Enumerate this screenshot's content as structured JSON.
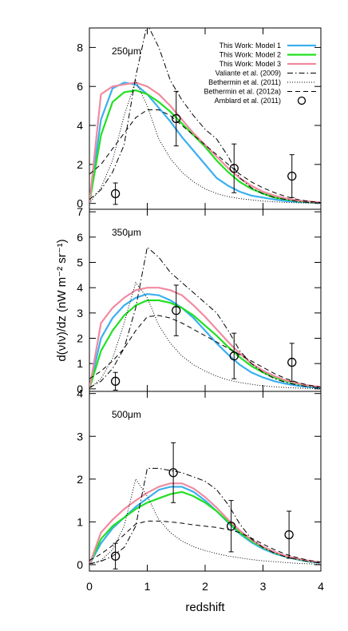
{
  "chart_data": [
    {
      "type": "line",
      "annotation": "250μm",
      "legend": "upper right",
      "x": [
        0,
        0.2,
        0.4,
        0.6,
        0.8,
        1.0,
        1.2,
        1.4,
        1.6,
        1.8,
        2.0,
        2.2,
        2.4,
        2.6,
        2.8,
        3.0,
        3.2,
        3.4,
        3.6,
        3.8,
        4.0
      ],
      "ylim": [
        -0.3,
        9
      ],
      "yticks": [
        0,
        2,
        4,
        6,
        8
      ],
      "xlim": [
        0,
        4
      ],
      "xticks": [
        0,
        1,
        2,
        3,
        4
      ],
      "series": [
        {
          "name": "This Work: Model 1",
          "color": "#3ab0f0",
          "style": "solid",
          "values": [
            0,
            4.3,
            5.9,
            6.2,
            6.1,
            5.6,
            4.9,
            4.2,
            3.4,
            2.7,
            2.0,
            1.3,
            0.9,
            0.6,
            0.4,
            0.3,
            0.2,
            0.12,
            0.08,
            0.05,
            0.03
          ]
        },
        {
          "name": "This Work: Model 2",
          "color": "#22e022",
          "style": "solid",
          "values": [
            0,
            3.5,
            5.2,
            5.7,
            5.8,
            5.6,
            5.2,
            4.7,
            4.1,
            3.5,
            2.9,
            2.2,
            1.6,
            1.1,
            0.75,
            0.5,
            0.3,
            0.2,
            0.12,
            0.07,
            0.04
          ]
        },
        {
          "name": "This Work: Model 3",
          "color": "#f08aa0",
          "style": "solid",
          "values": [
            0,
            5.6,
            6.0,
            6.1,
            6.2,
            6.0,
            5.6,
            5.0,
            4.3,
            3.6,
            3.0,
            2.4,
            1.8,
            1.3,
            0.9,
            0.6,
            0.4,
            0.25,
            0.15,
            0.1,
            0.05
          ]
        },
        {
          "name": "Valiante et al. (2009)",
          "color": "#000000",
          "style": "dashdot",
          "values": [
            0.2,
            0.7,
            1.6,
            3.0,
            6.5,
            9.2,
            8.0,
            6.3,
            5.3,
            4.5,
            3.8,
            3.3,
            2.4,
            1.3,
            0.8,
            0.5,
            0.3,
            0.2,
            0.1,
            0.05,
            0.02
          ]
        },
        {
          "name": "Bethermin et al. (2011)",
          "color": "#000000",
          "style": "dotted",
          "values": [
            0,
            0.8,
            2.2,
            4.5,
            6.3,
            5.0,
            3.3,
            2.3,
            1.6,
            1.1,
            0.75,
            0.5,
            0.35,
            0.25,
            0.18,
            0.12,
            0.08,
            0.05,
            0.03,
            0.02,
            0.01
          ]
        },
        {
          "name": "Bethermin et al. (2012a)",
          "color": "#000000",
          "style": "dashed",
          "values": [
            1.5,
            2.0,
            2.8,
            3.6,
            4.4,
            4.8,
            4.8,
            4.5,
            4.0,
            3.5,
            3.0,
            2.5,
            2.0,
            1.5,
            1.1,
            0.8,
            0.55,
            0.35,
            0.2,
            0.1,
            0.05
          ]
        },
        {
          "name": "Amblard et al. (2011)",
          "color": "#000000",
          "style": "points",
          "x": [
            0.45,
            1.5,
            2.5,
            3.5
          ],
          "values": [
            0.5,
            4.35,
            1.8,
            1.4
          ],
          "errors": [
            0.55,
            1.4,
            1.25,
            1.1
          ]
        }
      ]
    },
    {
      "type": "line",
      "annotation": "350μm",
      "ylabel": "d(νIν)/dz (nW m⁻² sr⁻¹)",
      "x": [
        0,
        0.2,
        0.4,
        0.6,
        0.8,
        1.0,
        1.2,
        1.4,
        1.6,
        1.8,
        2.0,
        2.2,
        2.4,
        2.6,
        2.8,
        3.0,
        3.2,
        3.4,
        3.6,
        3.8,
        4.0
      ],
      "ylim": [
        -0.1,
        7.1
      ],
      "yticks": [
        0,
        1,
        2,
        3,
        4,
        5,
        6,
        7
      ],
      "xlim": [
        0,
        4
      ],
      "xticks": [
        0,
        1,
        2,
        3,
        4
      ],
      "series": [
        {
          "color": "#3ab0f0",
          "style": "solid",
          "values": [
            0,
            2.0,
            2.8,
            3.3,
            3.6,
            3.75,
            3.7,
            3.5,
            3.2,
            2.8,
            2.3,
            1.8,
            1.35,
            0.95,
            0.65,
            0.45,
            0.3,
            0.2,
            0.12,
            0.07,
            0.04
          ]
        },
        {
          "color": "#22e022",
          "style": "solid",
          "values": [
            0,
            1.5,
            2.3,
            2.9,
            3.3,
            3.5,
            3.5,
            3.4,
            3.2,
            2.9,
            2.5,
            2.1,
            1.65,
            1.25,
            0.9,
            0.65,
            0.45,
            0.3,
            0.2,
            0.12,
            0.07
          ]
        },
        {
          "color": "#f08aa0",
          "style": "solid",
          "values": [
            0,
            2.6,
            3.2,
            3.6,
            3.9,
            4.0,
            4.0,
            3.9,
            3.7,
            3.3,
            2.85,
            2.35,
            1.85,
            1.4,
            1.0,
            0.72,
            0.5,
            0.33,
            0.22,
            0.13,
            0.08
          ]
        },
        {
          "color": "#000000",
          "style": "dashdot",
          "values": [
            0.05,
            0.3,
            0.8,
            1.6,
            3.2,
            5.6,
            5.2,
            4.6,
            4.2,
            3.8,
            3.4,
            3.0,
            2.3,
            1.5,
            1.0,
            0.65,
            0.4,
            0.25,
            0.15,
            0.08,
            0.04
          ]
        },
        {
          "color": "#000000",
          "style": "dotted",
          "values": [
            0,
            0.4,
            1.2,
            2.6,
            4.2,
            3.6,
            2.5,
            1.8,
            1.3,
            0.95,
            0.7,
            0.5,
            0.35,
            0.25,
            0.18,
            0.12,
            0.08,
            0.05,
            0.03,
            0.02,
            0.01
          ]
        },
        {
          "color": "#000000",
          "style": "dashed",
          "values": [
            0.4,
            0.7,
            1.1,
            1.6,
            2.3,
            2.85,
            2.9,
            2.8,
            2.6,
            2.35,
            2.1,
            1.85,
            1.6,
            1.35,
            1.1,
            0.85,
            0.6,
            0.4,
            0.25,
            0.14,
            0.07
          ]
        },
        {
          "color": "#000000",
          "style": "points",
          "x": [
            0.45,
            1.5,
            2.5,
            3.5
          ],
          "values": [
            0.3,
            3.1,
            1.3,
            1.05
          ],
          "errors": [
            0.35,
            1.0,
            0.9,
            0.75
          ]
        }
      ]
    },
    {
      "type": "line",
      "annotation": "500μm",
      "xlabel": "redshift",
      "x": [
        0,
        0.2,
        0.4,
        0.6,
        0.8,
        1.0,
        1.2,
        1.4,
        1.6,
        1.8,
        2.0,
        2.2,
        2.4,
        2.6,
        2.8,
        3.0,
        3.2,
        3.4,
        3.6,
        3.8,
        4.0
      ],
      "ylim": [
        -0.15,
        4.05
      ],
      "yticks": [
        0,
        1,
        2,
        3,
        4
      ],
      "xlim": [
        0,
        4
      ],
      "xticks": [
        0,
        1,
        2,
        3,
        4
      ],
      "series": [
        {
          "color": "#3ab0f0",
          "style": "solid",
          "values": [
            0,
            0.5,
            0.85,
            1.1,
            1.35,
            1.55,
            1.75,
            1.82,
            1.82,
            1.7,
            1.5,
            1.25,
            0.98,
            0.72,
            0.52,
            0.37,
            0.26,
            0.18,
            0.12,
            0.07,
            0.04
          ]
        },
        {
          "color": "#22e022",
          "style": "solid",
          "values": [
            0,
            0.6,
            0.9,
            1.1,
            1.3,
            1.45,
            1.55,
            1.65,
            1.7,
            1.6,
            1.45,
            1.25,
            1.0,
            0.75,
            0.55,
            0.4,
            0.28,
            0.19,
            0.13,
            0.08,
            0.05
          ]
        },
        {
          "color": "#f08aa0",
          "style": "solid",
          "values": [
            0,
            0.75,
            1.05,
            1.3,
            1.5,
            1.68,
            1.82,
            1.9,
            1.9,
            1.78,
            1.58,
            1.33,
            1.05,
            0.8,
            0.58,
            0.42,
            0.3,
            0.2,
            0.14,
            0.09,
            0.05
          ]
        },
        {
          "color": "#000000",
          "style": "dashdot",
          "values": [
            0.02,
            0.08,
            0.2,
            0.4,
            0.9,
            2.25,
            2.25,
            2.2,
            2.15,
            2.05,
            1.95,
            1.75,
            1.4,
            0.95,
            0.6,
            0.4,
            0.27,
            0.18,
            0.12,
            0.07,
            0.04
          ]
        },
        {
          "color": "#000000",
          "style": "dotted",
          "values": [
            0,
            0.1,
            0.35,
            0.9,
            2.0,
            1.6,
            1.05,
            0.75,
            0.55,
            0.42,
            0.33,
            0.26,
            0.2,
            0.16,
            0.12,
            0.09,
            0.07,
            0.05,
            0.03,
            0.02,
            0.01
          ]
        },
        {
          "color": "#000000",
          "style": "dashed",
          "values": [
            0.1,
            0.25,
            0.45,
            0.7,
            0.95,
            1.02,
            1.02,
            1.0,
            0.97,
            0.93,
            0.9,
            0.87,
            0.82,
            0.75,
            0.62,
            0.48,
            0.35,
            0.24,
            0.16,
            0.1,
            0.06
          ]
        },
        {
          "color": "#000000",
          "style": "points",
          "x": [
            0.45,
            1.45,
            2.45,
            3.45
          ],
          "values": [
            0.2,
            2.15,
            0.9,
            0.7
          ],
          "errors": [
            0.3,
            0.7,
            0.6,
            0.55
          ]
        }
      ]
    }
  ]
}
